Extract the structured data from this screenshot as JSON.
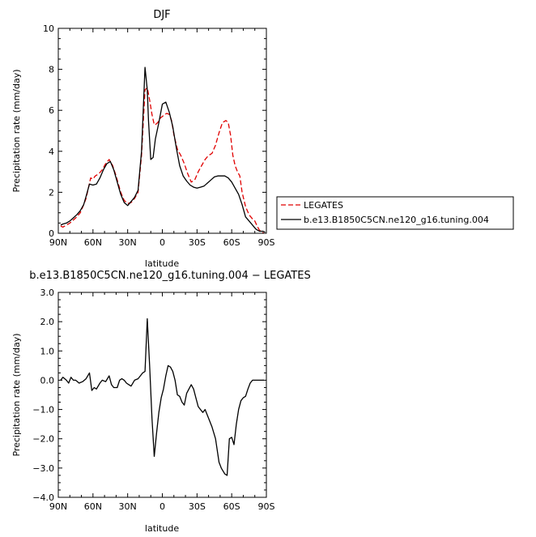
{
  "chart_data": [
    {
      "type": "line",
      "title": "DJF",
      "xlabel": "latitude",
      "ylabel": "Precipitation rate (mm/day)",
      "xlim": [
        90,
        -90
      ],
      "ylim": [
        0,
        10
      ],
      "x_ticks": [
        90,
        60,
        30,
        0,
        -30,
        -60,
        -90
      ],
      "x_tick_labels": [
        "90N",
        "60N",
        "30N",
        "0",
        "30S",
        "60S",
        "90S"
      ],
      "y_ticks": [
        0,
        2,
        4,
        6,
        8,
        10
      ],
      "y_tick_labels": [
        "0",
        "2",
        "4",
        "6",
        "8",
        "10"
      ],
      "grid": false,
      "legend_position": "right",
      "series": [
        {
          "name": "LEGATES",
          "color": "#e00000",
          "style": "dashed",
          "x": [
            88,
            86,
            83,
            80,
            77,
            74,
            71,
            68,
            66,
            64,
            62,
            60,
            58,
            55,
            52,
            49,
            46,
            43,
            40,
            38,
            36,
            33,
            30,
            27,
            24,
            21,
            18,
            15,
            13,
            11,
            9,
            7,
            6,
            4,
            2,
            0,
            -2,
            -4,
            -6,
            -8,
            -10,
            -13,
            -16,
            -19,
            -22,
            -25,
            -28,
            -31,
            -34,
            -37,
            -40,
            -43,
            -46,
            -49,
            -52,
            -55,
            -57,
            -59,
            -61,
            -63,
            -65,
            -67,
            -69,
            -72,
            -75,
            -78,
            -80,
            -82,
            -84,
            -86,
            -88
          ],
          "y": [
            0.35,
            0.3,
            0.4,
            0.5,
            0.65,
            0.8,
            1.0,
            1.4,
            1.7,
            2.2,
            2.7,
            2.65,
            2.8,
            2.9,
            3.1,
            3.4,
            3.6,
            3.3,
            2.8,
            2.4,
            2.0,
            1.6,
            1.45,
            1.5,
            1.7,
            2.0,
            3.8,
            7.0,
            7.1,
            6.5,
            5.8,
            5.3,
            5.3,
            5.4,
            5.6,
            5.7,
            5.8,
            5.85,
            5.8,
            5.5,
            4.8,
            4.1,
            3.8,
            3.4,
            2.9,
            2.5,
            2.6,
            3.0,
            3.3,
            3.6,
            3.8,
            3.9,
            4.3,
            4.9,
            5.4,
            5.5,
            5.4,
            4.8,
            3.8,
            3.3,
            3.0,
            2.8,
            2.0,
            1.3,
            0.9,
            0.7,
            0.6,
            0.35,
            0.15,
            0.05,
            0.0
          ]
        },
        {
          "name": "b.e13.B1850C5CN.ne120_g16.tuning.004",
          "color": "#000000",
          "style": "solid",
          "x": [
            88,
            86,
            83,
            80,
            77,
            74,
            71,
            68,
            66,
            63,
            60,
            57,
            54,
            51,
            48,
            45,
            42,
            39,
            36,
            33,
            30,
            27,
            24,
            21,
            18,
            15,
            13,
            12,
            10,
            8,
            6,
            3,
            0,
            -3,
            -6,
            -9,
            -12,
            -15,
            -18,
            -21,
            -24,
            -27,
            -30,
            -33,
            -36,
            -39,
            -42,
            -45,
            -48,
            -51,
            -54,
            -57,
            -60,
            -63,
            -66,
            -69,
            -72,
            -75,
            -78,
            -81,
            -84,
            -87,
            -89
          ],
          "y": [
            0.4,
            0.45,
            0.5,
            0.6,
            0.75,
            0.9,
            1.1,
            1.4,
            1.8,
            2.4,
            2.35,
            2.4,
            2.7,
            3.1,
            3.4,
            3.5,
            3.1,
            2.5,
            1.9,
            1.5,
            1.35,
            1.55,
            1.75,
            2.1,
            4.0,
            8.1,
            7.0,
            5.5,
            3.6,
            3.7,
            4.6,
            5.4,
            6.3,
            6.4,
            5.9,
            5.2,
            4.2,
            3.3,
            2.8,
            2.55,
            2.35,
            2.25,
            2.2,
            2.25,
            2.3,
            2.45,
            2.6,
            2.75,
            2.8,
            2.8,
            2.8,
            2.7,
            2.5,
            2.2,
            1.9,
            1.4,
            0.8,
            0.6,
            0.4,
            0.2,
            0.1,
            0.1,
            0.05
          ]
        }
      ]
    },
    {
      "type": "line",
      "title": "b.e13.B1850C5CN.ne120_g16.tuning.004 − LEGATES",
      "xlabel": "latitude",
      "ylabel": "Precipitation rate (mm/day)",
      "xlim": [
        90,
        -90
      ],
      "ylim": [
        -4,
        3
      ],
      "x_ticks": [
        90,
        60,
        30,
        0,
        -30,
        -60,
        -90
      ],
      "x_tick_labels": [
        "90N",
        "60N",
        "30N",
        "0",
        "30S",
        "60S",
        "90S"
      ],
      "y_ticks": [
        -4,
        -3,
        -2,
        -1,
        0,
        1,
        2,
        3
      ],
      "y_tick_labels": [
        "−4.0",
        "−3.0",
        "−2.0",
        "−1.0",
        "0.0",
        "1.0",
        "2.0",
        "3.0"
      ],
      "grid": false,
      "series": [
        {
          "name": "",
          "color": "#000000",
          "style": "solid",
          "x": [
            88,
            86,
            83,
            81,
            79,
            77,
            75,
            72,
            69,
            66,
            63,
            61,
            59,
            57,
            54,
            52,
            49,
            46,
            44,
            42,
            39,
            37,
            35,
            33,
            31,
            29,
            27,
            24,
            21,
            19,
            17,
            15,
            13,
            11,
            9,
            7,
            5,
            3,
            1,
            -1,
            -3,
            -5,
            -7,
            -9,
            -11,
            -13,
            -15,
            -17,
            -19,
            -21,
            -23,
            -25,
            -27,
            -29,
            -31,
            -33,
            -35,
            -37,
            -40,
            -43,
            -46,
            -49,
            -51,
            -54,
            -56,
            -58,
            -60,
            -62,
            -64,
            -66,
            -68,
            -70,
            -72,
            -74,
            -76,
            -78,
            -80,
            -82,
            -84,
            -86,
            -88
          ],
          "y": [
            0.0,
            0.1,
            0.0,
            -0.1,
            0.1,
            0.0,
            0.0,
            -0.1,
            -0.05,
            0.05,
            0.25,
            -0.35,
            -0.25,
            -0.3,
            -0.1,
            0.0,
            -0.05,
            0.15,
            -0.15,
            -0.25,
            -0.25,
            0.0,
            0.05,
            0.0,
            -0.1,
            -0.15,
            -0.2,
            0.0,
            0.05,
            0.15,
            0.25,
            0.3,
            2.1,
            0.5,
            -1.3,
            -2.6,
            -1.8,
            -1.1,
            -0.6,
            -0.3,
            0.15,
            0.5,
            0.45,
            0.3,
            0.0,
            -0.5,
            -0.55,
            -0.75,
            -0.85,
            -0.45,
            -0.3,
            -0.15,
            -0.3,
            -0.6,
            -0.9,
            -1.0,
            -1.1,
            -1.0,
            -1.3,
            -1.6,
            -2.0,
            -2.8,
            -3.0,
            -3.2,
            -3.25,
            -2.0,
            -1.95,
            -2.2,
            -1.5,
            -1.0,
            -0.7,
            -0.6,
            -0.55,
            -0.3,
            -0.1,
            0.0,
            0.0,
            0.0,
            0.0,
            0.0,
            0.0
          ]
        }
      ]
    }
  ]
}
